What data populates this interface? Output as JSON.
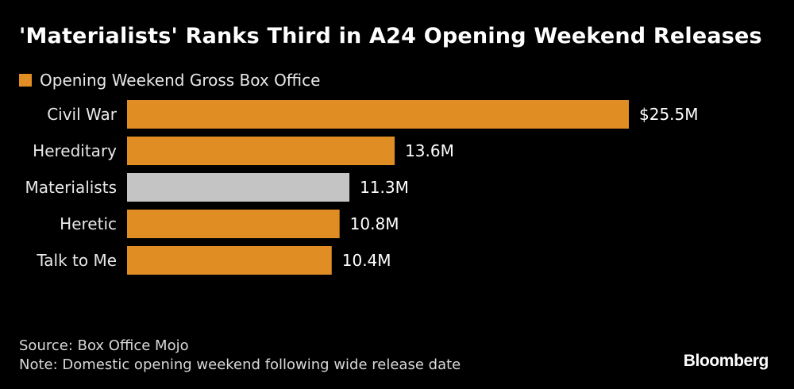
{
  "chart_data": {
    "type": "bar",
    "orientation": "horizontal",
    "title": "'Materialists' Ranks Third in A24 Opening Weekend Releases",
    "legend": {
      "label": "Opening Weekend Gross Box Office",
      "placement": "top-left"
    },
    "categories": [
      "Civil War",
      "Hereditary",
      "Materialists",
      "Heretic",
      "Talk to Me"
    ],
    "values": [
      25.5,
      13.6,
      11.3,
      10.8,
      10.4
    ],
    "value_labels": [
      "$25.5M",
      "13.6M",
      "11.3M",
      "10.8M",
      "10.4M"
    ],
    "highlight_category": "Materialists",
    "xlim": [
      0,
      25.5
    ],
    "grid": false
  },
  "colors": {
    "bar": "#e08e24",
    "highlight": "#c4c4c4",
    "background": "#000000",
    "text": "#ffffff"
  },
  "footer": {
    "source": "Source: Box Office Mojo",
    "note": "Note: Domestic opening weekend following wide release date"
  },
  "brand": "Bloomberg"
}
